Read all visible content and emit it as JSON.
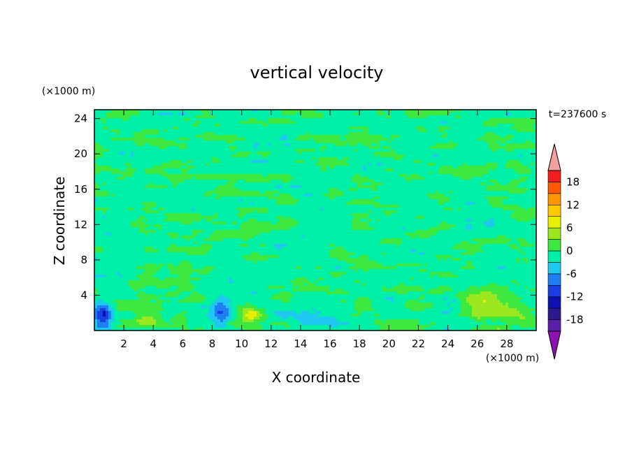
{
  "chart_data": {
    "type": "heatmap",
    "title": "vertical velocity",
    "xlabel": "X coordinate",
    "ylabel": "Z coordinate",
    "x_unit": "(×1000 m)",
    "y_unit": "(×1000 m)",
    "time_label": "t=237600 s",
    "xlim": [
      0,
      30
    ],
    "ylim": [
      0,
      25
    ],
    "x_ticks": [
      2,
      4,
      6,
      8,
      10,
      12,
      14,
      16,
      18,
      20,
      22,
      24,
      26,
      28
    ],
    "y_ticks": [
      4,
      8,
      12,
      16,
      20,
      24
    ],
    "colorbar": {
      "tick_labels": [
        "18",
        "12",
        "6",
        "0",
        "-6",
        "-12",
        "-18"
      ],
      "tick_values": [
        18,
        12,
        6,
        0,
        -6,
        -12,
        -18
      ],
      "range": [
        -21,
        21
      ],
      "levels": [
        {
          "from": -21,
          "to": -18,
          "color": "#5a1fa8"
        },
        {
          "from": -18,
          "to": -15,
          "color": "#2b1a8f"
        },
        {
          "from": -15,
          "to": -12,
          "color": "#1010b0"
        },
        {
          "from": -12,
          "to": -9,
          "color": "#1a3fe0"
        },
        {
          "from": -9,
          "to": -6,
          "color": "#1e7ff0"
        },
        {
          "from": -6,
          "to": -3,
          "color": "#1ec8f0"
        },
        {
          "from": -3,
          "to": 0,
          "color": "#00f0a8"
        },
        {
          "from": 0,
          "to": 3,
          "color": "#3ee83e"
        },
        {
          "from": 3,
          "to": 6,
          "color": "#9be820"
        },
        {
          "from": 6,
          "to": 9,
          "color": "#e6f000"
        },
        {
          "from": 9,
          "to": 12,
          "color": "#ffc800"
        },
        {
          "from": 12,
          "to": 15,
          "color": "#ff9600"
        },
        {
          "from": 15,
          "to": 18,
          "color": "#ff5a00"
        },
        {
          "from": 18,
          "to": 21,
          "color": "#f01e1e"
        }
      ],
      "over_color": "#f4a0a0",
      "under_color": "#8a12b0"
    },
    "field_features": [
      {
        "kind": "updraft",
        "x": 27,
        "z": 2.8,
        "rx": 1.9,
        "rz": 2.0,
        "peak": 7
      },
      {
        "kind": "updraft",
        "x": 10.6,
        "z": 1.8,
        "rx": 0.8,
        "rz": 1.4,
        "peak": 6
      },
      {
        "kind": "updraft",
        "x": 3.6,
        "z": 1.5,
        "rx": 0.9,
        "rz": 0.9,
        "peak": 5
      },
      {
        "kind": "updraft",
        "x": 18.3,
        "z": 2.8,
        "rx": 0.5,
        "rz": 0.7,
        "peak": 4
      },
      {
        "kind": "updraft",
        "x": 5.7,
        "z": 1.3,
        "rx": 0.5,
        "rz": 0.8,
        "peak": 3
      },
      {
        "kind": "updraft",
        "x": 2.8,
        "z": 4.9,
        "rx": 0.3,
        "rz": 0.4,
        "peak": 3
      },
      {
        "kind": "downdraft",
        "x": 0.6,
        "z": 1.7,
        "rx": 0.6,
        "rz": 1.4,
        "peak": -12
      },
      {
        "kind": "downdraft",
        "x": 8.6,
        "z": 2.1,
        "rx": 0.6,
        "rz": 1.8,
        "peak": -8
      },
      {
        "kind": "downdraft",
        "x": 24.3,
        "z": 2.8,
        "rx": 0.8,
        "rz": 1.2,
        "peak": -4
      },
      {
        "kind": "downdraft",
        "x": 15.0,
        "z": 1.6,
        "rx": 1.4,
        "rz": 0.8,
        "peak": -3
      },
      {
        "kind": "downdraft",
        "x": 20.0,
        "z": 1.5,
        "rx": 0.6,
        "rz": 0.5,
        "peak": -3
      },
      {
        "kind": "downdraft",
        "x": 12.8,
        "z": 1.6,
        "rx": 0.7,
        "rz": 0.6,
        "peak": -2
      }
    ],
    "background_value": -0.8,
    "background_noise_amplitude": 2.4
  }
}
